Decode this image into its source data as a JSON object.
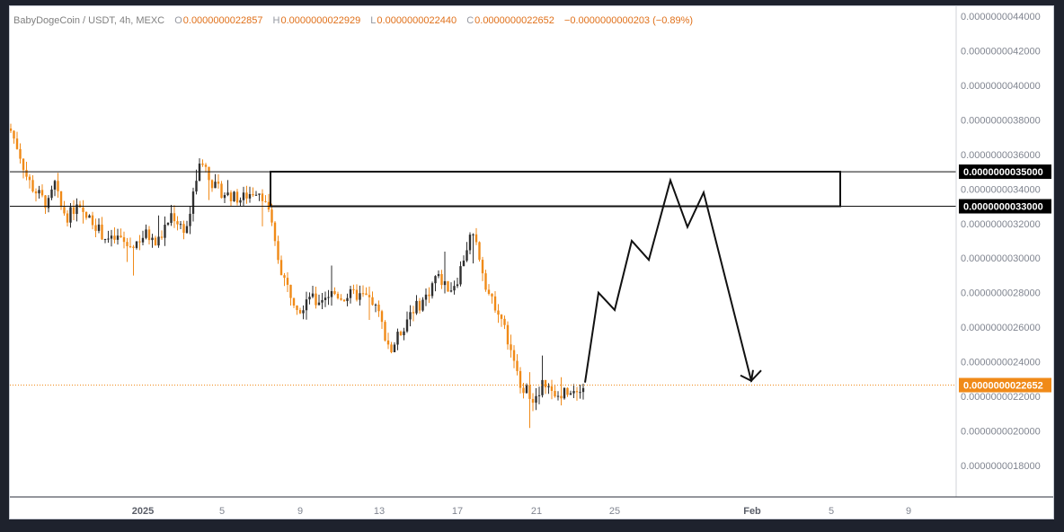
{
  "header": {
    "symbol": "BabyDogeCoin / USDT, 4h, MEXC",
    "o_label": "O",
    "o_value": "0.0000000022857",
    "h_label": "H",
    "h_value": "0.0000000022929",
    "l_label": "L",
    "l_value": "0.0000000022440",
    "c_label": "C",
    "c_value": "0.0000000022652",
    "change": "−0.0000000000203 (−0.89%)"
  },
  "colors": {
    "up": "#2f2f2f",
    "down": "#f08a18",
    "price_line": "#f08a18",
    "badge_dark": "#000000"
  },
  "chart_data": {
    "type": "candlestick",
    "y_axis": {
      "min": 1.7e-09,
      "max": 4.4e-09,
      "ticks": [
        "0.0000000044000",
        "0.0000000042000",
        "0.0000000040000",
        "0.0000000038000",
        "0.0000000036000",
        "0.0000000034000",
        "0.0000000032000",
        "0.0000000030000",
        "0.0000000028000",
        "0.0000000026000",
        "0.0000000024000",
        "0.0000000022000",
        "0.0000000020000",
        "0.0000000018000"
      ],
      "tick_values": [
        4.4,
        4.2,
        4.0,
        3.8,
        3.6,
        3.4,
        3.2,
        3.0,
        2.8,
        2.6,
        2.4,
        2.2,
        2.0,
        1.8
      ],
      "unit_scale": "1e-9"
    },
    "x_axis": {
      "labels": [
        "2025",
        "5",
        "9",
        "13",
        "17",
        "21",
        "25",
        "Feb",
        "5",
        "9"
      ],
      "bold_labels": [
        "2025",
        "Feb"
      ]
    },
    "price_path": [
      [
        0,
        3.75
      ],
      [
        10,
        3.62
      ],
      [
        18,
        3.48
      ],
      [
        26,
        3.4
      ],
      [
        34,
        3.36
      ],
      [
        42,
        3.3
      ],
      [
        50,
        3.43
      ],
      [
        56,
        3.3
      ],
      [
        64,
        3.24
      ],
      [
        74,
        3.3
      ],
      [
        82,
        3.24
      ],
      [
        92,
        3.22
      ],
      [
        102,
        3.14
      ],
      [
        112,
        3.1
      ],
      [
        122,
        3.12
      ],
      [
        132,
        3.06
      ],
      [
        142,
        3.1
      ],
      [
        152,
        3.14
      ],
      [
        162,
        3.08
      ],
      [
        172,
        3.16
      ],
      [
        180,
        3.26
      ],
      [
        188,
        3.2
      ],
      [
        196,
        3.16
      ],
      [
        202,
        3.3
      ],
      [
        208,
        3.48
      ],
      [
        214,
        3.57
      ],
      [
        220,
        3.5
      ],
      [
        226,
        3.42
      ],
      [
        236,
        3.38
      ],
      [
        246,
        3.36
      ],
      [
        256,
        3.34
      ],
      [
        266,
        3.37
      ],
      [
        276,
        3.4
      ],
      [
        284,
        3.34
      ],
      [
        290,
        3.22
      ],
      [
        296,
        3.05
      ],
      [
        302,
        2.93
      ],
      [
        308,
        2.84
      ],
      [
        316,
        2.76
      ],
      [
        324,
        2.7
      ],
      [
        332,
        2.8
      ],
      [
        340,
        2.74
      ],
      [
        350,
        2.78
      ],
      [
        360,
        2.8
      ],
      [
        370,
        2.77
      ],
      [
        380,
        2.79
      ],
      [
        392,
        2.78
      ],
      [
        402,
        2.76
      ],
      [
        410,
        2.68
      ],
      [
        418,
        2.55
      ],
      [
        424,
        2.46
      ],
      [
        430,
        2.53
      ],
      [
        438,
        2.6
      ],
      [
        446,
        2.7
      ],
      [
        456,
        2.73
      ],
      [
        466,
        2.8
      ],
      [
        474,
        2.9
      ],
      [
        482,
        2.86
      ],
      [
        490,
        2.82
      ],
      [
        498,
        2.88
      ],
      [
        506,
        3.02
      ],
      [
        512,
        3.12
      ],
      [
        518,
        3.1
      ],
      [
        524,
        2.98
      ],
      [
        530,
        2.84
      ],
      [
        536,
        2.75
      ],
      [
        542,
        2.72
      ],
      [
        548,
        2.64
      ],
      [
        554,
        2.52
      ],
      [
        560,
        2.4
      ],
      [
        566,
        2.3
      ],
      [
        572,
        2.25
      ],
      [
        580,
        2.2
      ],
      [
        588,
        2.18
      ],
      [
        594,
        2.3
      ],
      [
        600,
        2.24
      ],
      [
        606,
        2.18
      ],
      [
        614,
        2.22
      ],
      [
        622,
        2.24
      ],
      [
        630,
        2.25
      ],
      [
        638,
        2.266
      ]
    ],
    "last_price": 2.2652,
    "last_price_label": "0.0000000022652",
    "resistance_zone": {
      "top": 3.5,
      "bottom": 3.3,
      "top_label": "0.0000000035000",
      "bottom_label": "0.0000000033000"
    },
    "projection_path": [
      [
        2.28
      ],
      [
        2.8
      ],
      [
        2.7
      ],
      [
        3.1
      ],
      [
        2.99
      ],
      [
        3.45
      ],
      [
        3.18
      ],
      [
        3.38
      ],
      [
        2.29
      ],
      [
        2.35
      ]
    ]
  }
}
